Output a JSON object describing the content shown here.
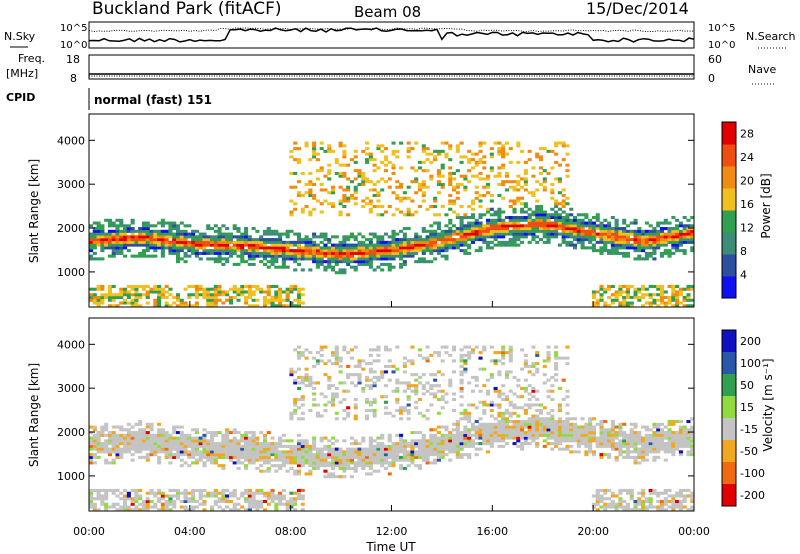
{
  "header": {
    "station": "Buckland Park (fitACF)",
    "beam": "Beam 08",
    "date": "15/Dec/2014"
  },
  "strip_labels": {
    "nsky": "N.Sky",
    "nsearch": "N.Search",
    "freq": "Freq.",
    "freq_unit": "[MHz]",
    "nave": "Nave",
    "cpid": "CPID",
    "cpid_value": "normal (fast) 151"
  },
  "strip_ticks": {
    "noise_left": [
      "10^5",
      "10^0"
    ],
    "noise_right": [
      "10^5",
      "10^0"
    ],
    "freq_left": [
      "18",
      "8"
    ],
    "nave_right": [
      "60",
      "0"
    ]
  },
  "colors": {
    "power_scale": [
      "#1010f0",
      "#2c4fa0",
      "#3c8c78",
      "#30a050",
      "#f0c020",
      "#f08c10",
      "#f04e10",
      "#e00000"
    ],
    "velocity_scale": [
      "#1010c0",
      "#2a58a8",
      "#30a050",
      "#90dc40",
      "#c4c4c4",
      "#f0a820",
      "#f06a10",
      "#e00000"
    ]
  },
  "chart_data": [
    {
      "type": "heatmap",
      "panel": "power",
      "ylabel": "Slant Range [km]",
      "y_ticks": [
        "1000",
        "2000",
        "3000",
        "4000"
      ],
      "ylim": [
        200,
        4600
      ],
      "x_ticks": [
        "00:00",
        "04:00",
        "08:00",
        "12:00",
        "16:00",
        "20:00",
        "00:00"
      ],
      "xlim_hours": [
        0,
        24
      ],
      "colorbar_label": "Power [dB]",
      "colorbar_ticks": [
        "4",
        "8",
        "12",
        "16",
        "20",
        "24",
        "28"
      ],
      "colorbar_range": [
        0,
        30
      ],
      "main_echo_band_km": [
        [
          0,
          1700
        ],
        [
          2,
          1800
        ],
        [
          4,
          1650
        ],
        [
          6,
          1600
        ],
        [
          8,
          1500
        ],
        [
          10,
          1400
        ],
        [
          12,
          1500
        ],
        [
          14,
          1700
        ],
        [
          16,
          2000
        ],
        [
          18,
          2100
        ],
        [
          20,
          1900
        ],
        [
          22,
          1700
        ],
        [
          24,
          1900
        ]
      ]
    },
    {
      "type": "heatmap",
      "panel": "velocity",
      "ylabel": "Slant Range [km]",
      "y_ticks": [
        "1000",
        "2000",
        "3000",
        "4000"
      ],
      "ylim": [
        200,
        4600
      ],
      "x_ticks": [
        "00:00",
        "04:00",
        "08:00",
        "12:00",
        "16:00",
        "20:00",
        "00:00"
      ],
      "xlabel": "Time UT",
      "colorbar_label": "Velocity [m s⁻¹]",
      "colorbar_ticks": [
        "200",
        "100",
        "50",
        "15",
        "-15",
        "-50",
        "-100",
        "-200"
      ]
    }
  ]
}
